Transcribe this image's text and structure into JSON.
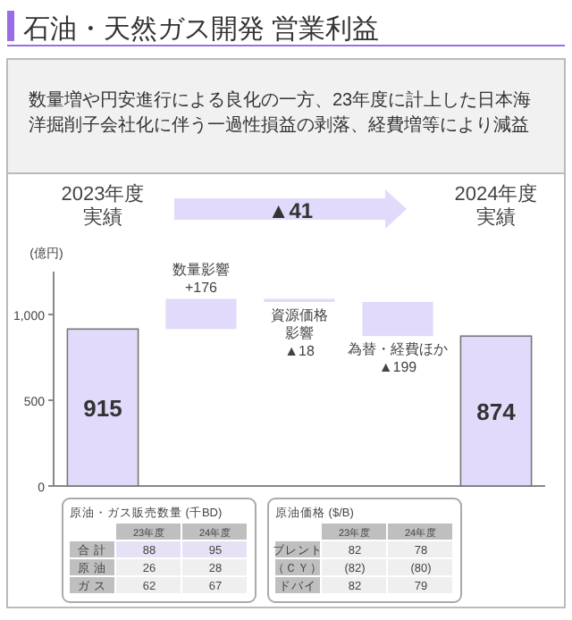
{
  "chart_data": [
    {
      "type": "bar",
      "title": "石油・天然ガス開発 営業利益",
      "subtitle": "数量増や円安進行による良化の一方、23年度に計上した日本海洋掘削子会社化に伴う一過性損益の剥落、経費増等により減益",
      "ylabel": "(億円)",
      "categories": [
        "2023年度実績",
        "数量影響",
        "資源価格影響",
        "為替・経費ほか",
        "2024年度実績"
      ],
      "values": [
        915,
        176,
        -18,
        -199,
        874
      ],
      "base": [
        0,
        915,
        1091,
        1073,
        0
      ],
      "colors": [
        "#e2dafa",
        "#e2dafa",
        "#e2dafa",
        "#e2dafa",
        "#e2dafa"
      ],
      "value_labels": [
        "915",
        "+176",
        "▲18",
        "▲199",
        "874"
      ],
      "ylim": [
        0,
        1250
      ],
      "yticks": [
        0,
        500,
        {
          "value": 1000,
          "label": "1,000"
        }
      ],
      "annotations": [
        "▲41"
      ]
    },
    {
      "type": "other",
      "title": "原油・ガス販売数量 (千BD)",
      "categories": [
        "23年度",
        "24年度"
      ],
      "y_categories": [
        "合 計",
        "原 油",
        "ガ ス"
      ],
      "cell_labels": [
        [
          "88",
          "95"
        ],
        [
          "26",
          "28"
        ],
        [
          "62",
          "67"
        ]
      ]
    },
    {
      "type": "other",
      "title": "原油価格 ($/B)",
      "categories": [
        "23年度",
        "24年度"
      ],
      "y_categories": [
        "ブレント",
        "（ＣＹ）",
        "ドバイ"
      ],
      "cell_labels": [
        [
          "82",
          "78"
        ],
        [
          "(82)",
          "(80)"
        ],
        [
          "82",
          "79"
        ]
      ]
    }
  ]
}
